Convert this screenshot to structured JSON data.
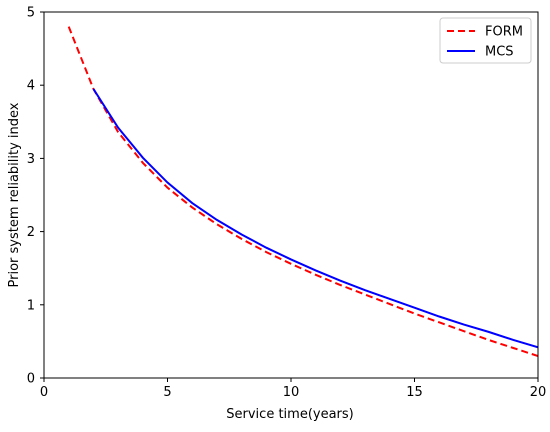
{
  "chart_data": {
    "type": "line",
    "xlabel": "Service time(years)",
    "ylabel": "Prior system reliability index",
    "xlim": [
      0,
      20
    ],
    "ylim": [
      0,
      5
    ],
    "xticks": [
      0,
      5,
      10,
      15,
      20
    ],
    "yticks": [
      0,
      1,
      2,
      3,
      4,
      5
    ],
    "grid": false,
    "legend_position": "top-right",
    "series": [
      {
        "name": "FORM",
        "color": "#ff0000",
        "dash": "dashed",
        "x": [
          1,
          2,
          3,
          4,
          5,
          6,
          7,
          8,
          9,
          10,
          11,
          12,
          13,
          14,
          15,
          16,
          17,
          18,
          19,
          20
        ],
        "y": [
          4.8,
          3.95,
          3.36,
          2.94,
          2.6,
          2.33,
          2.1,
          1.9,
          1.72,
          1.56,
          1.41,
          1.27,
          1.14,
          1.01,
          0.88,
          0.76,
          0.64,
          0.52,
          0.41,
          0.3
        ]
      },
      {
        "name": "MCS",
        "color": "#0000ff",
        "dash": "solid",
        "x": [
          2,
          3,
          4,
          5,
          6,
          7,
          8,
          9,
          10,
          11,
          12,
          13,
          14,
          15,
          16,
          17,
          18,
          19,
          20
        ],
        "y": [
          3.95,
          3.42,
          3.01,
          2.67,
          2.39,
          2.16,
          1.96,
          1.78,
          1.62,
          1.47,
          1.33,
          1.2,
          1.08,
          0.96,
          0.84,
          0.73,
          0.63,
          0.52,
          0.42
        ]
      }
    ]
  }
}
